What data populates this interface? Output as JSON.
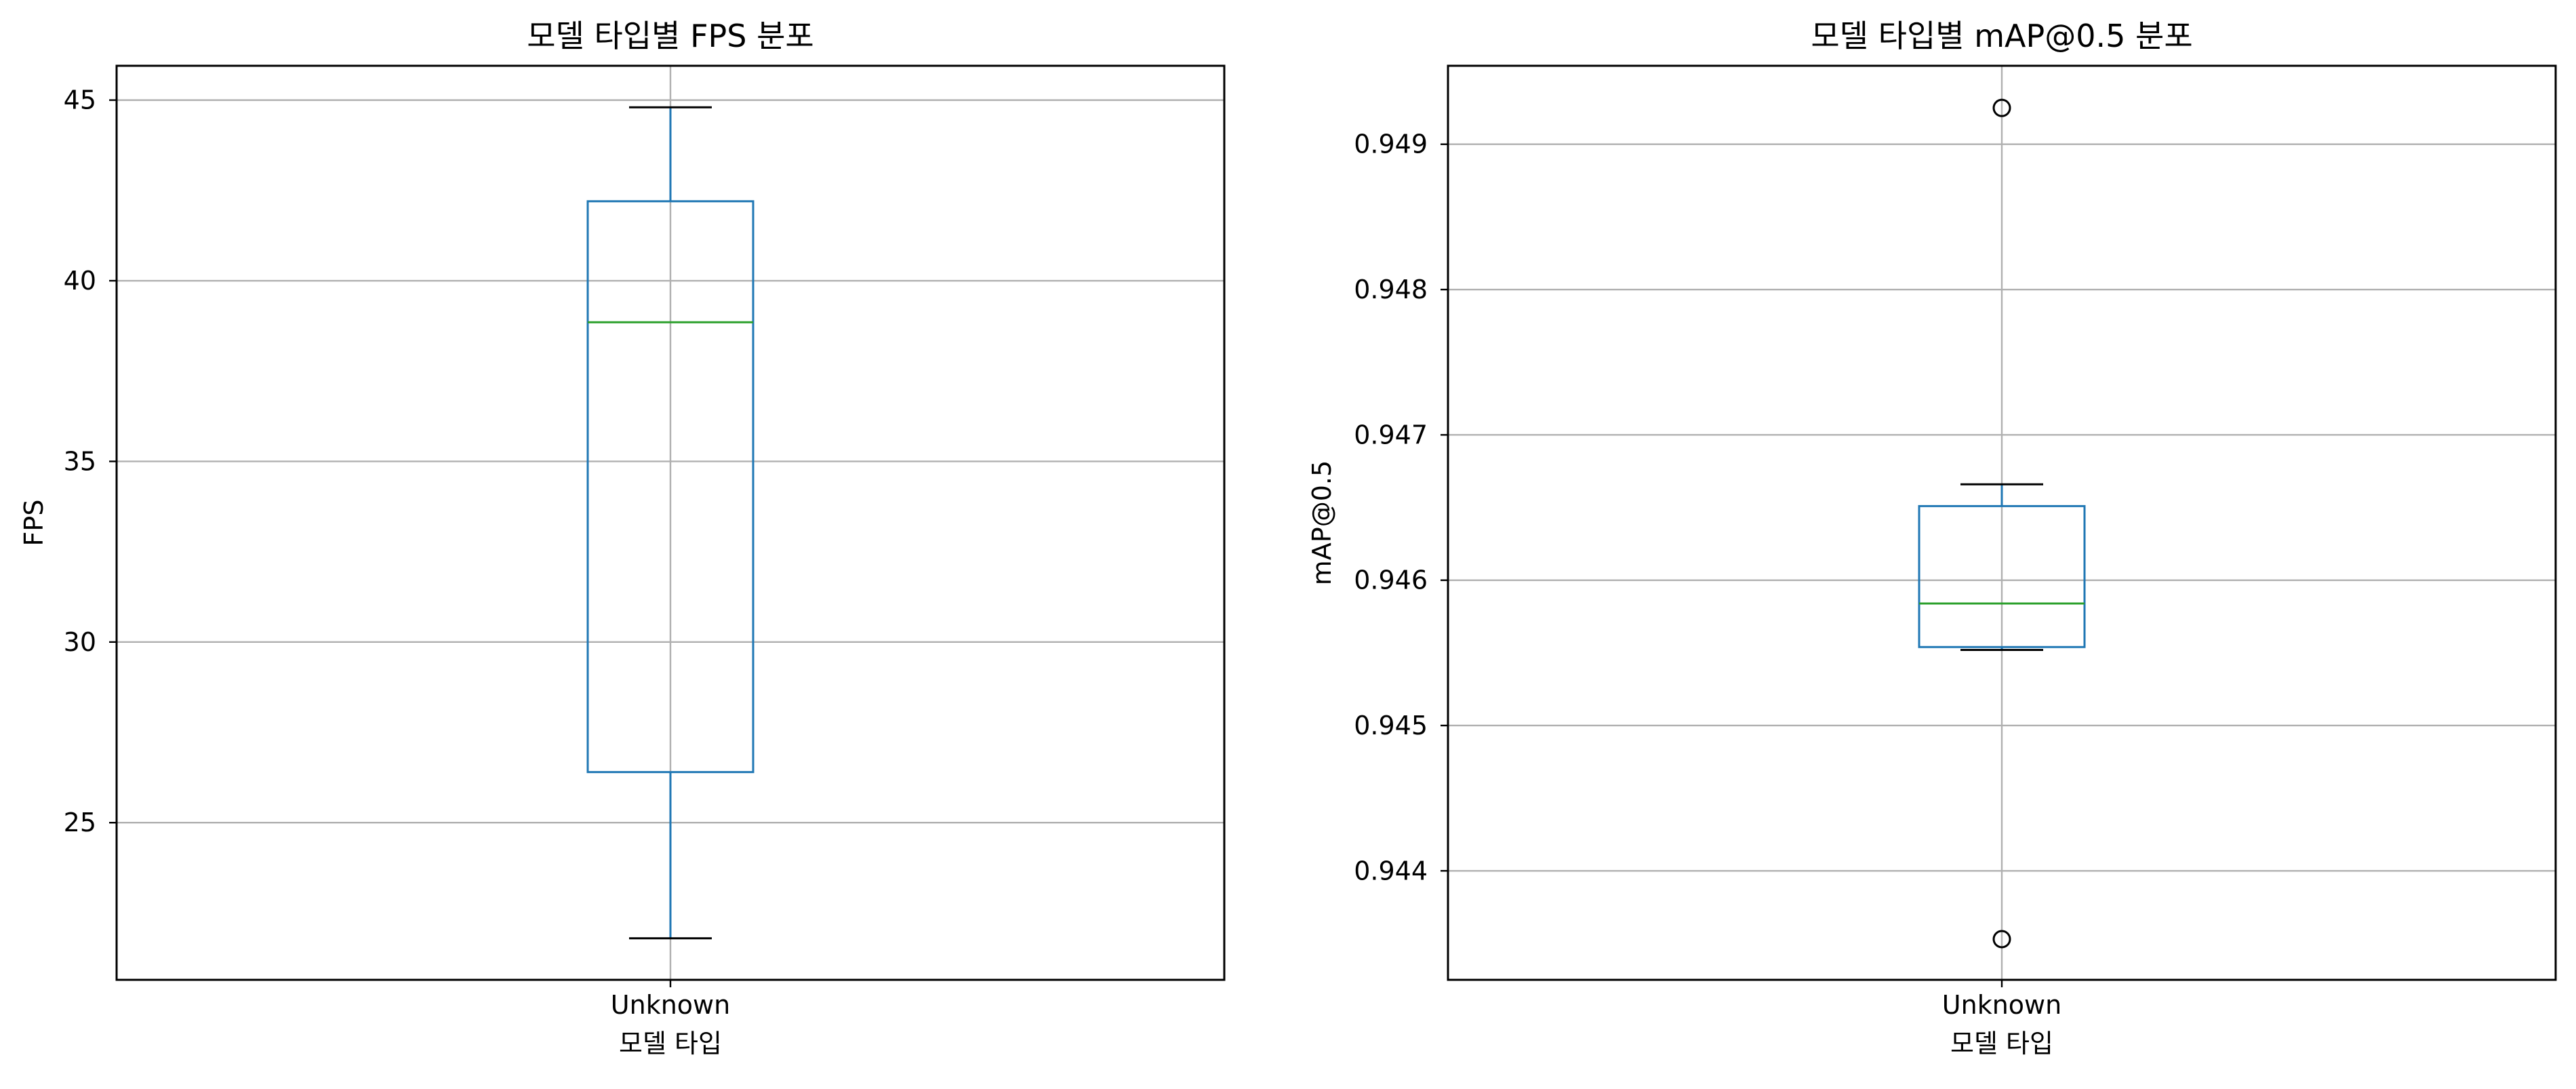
{
  "chart_data": [
    {
      "type": "box",
      "title": "모델 타입별 FPS 분포",
      "xlabel": "모델 타입",
      "ylabel": "FPS",
      "categories": [
        "Unknown"
      ],
      "ylim": [
        20.65,
        45.95
      ],
      "yticks": [
        25,
        30,
        35,
        40,
        45
      ],
      "ytick_labels": [
        "25",
        "30",
        "35",
        "40",
        "45"
      ],
      "grid": true,
      "boxes": [
        {
          "category": "Unknown",
          "whisker_low": 21.8,
          "q1": 26.4,
          "median": 38.85,
          "q3": 42.2,
          "whisker_high": 44.8,
          "outliers": []
        }
      ]
    },
    {
      "type": "box",
      "title": "모델 타입별 mAP@0.5 분포",
      "xlabel": "모델 타입",
      "ylabel": "mAP@0.5",
      "categories": [
        "Unknown"
      ],
      "ylim": [
        0.94325,
        0.94954
      ],
      "yticks": [
        0.944,
        0.945,
        0.946,
        0.947,
        0.948,
        0.949
      ],
      "ytick_labels": [
        "0.944",
        "0.945",
        "0.946",
        "0.947",
        "0.948",
        "0.949"
      ],
      "grid": true,
      "boxes": [
        {
          "category": "Unknown",
          "whisker_low": 0.94552,
          "q1": 0.94554,
          "median": 0.94584,
          "q3": 0.94651,
          "whisker_high": 0.94666,
          "outliers": [
            0.94925,
            0.94353
          ]
        }
      ]
    }
  ],
  "colors": {
    "box": "#1f77b4",
    "median": "#2ca02c",
    "whisker_cap": "#000000",
    "grid": "#b0b0b0",
    "axes": "#000000"
  }
}
